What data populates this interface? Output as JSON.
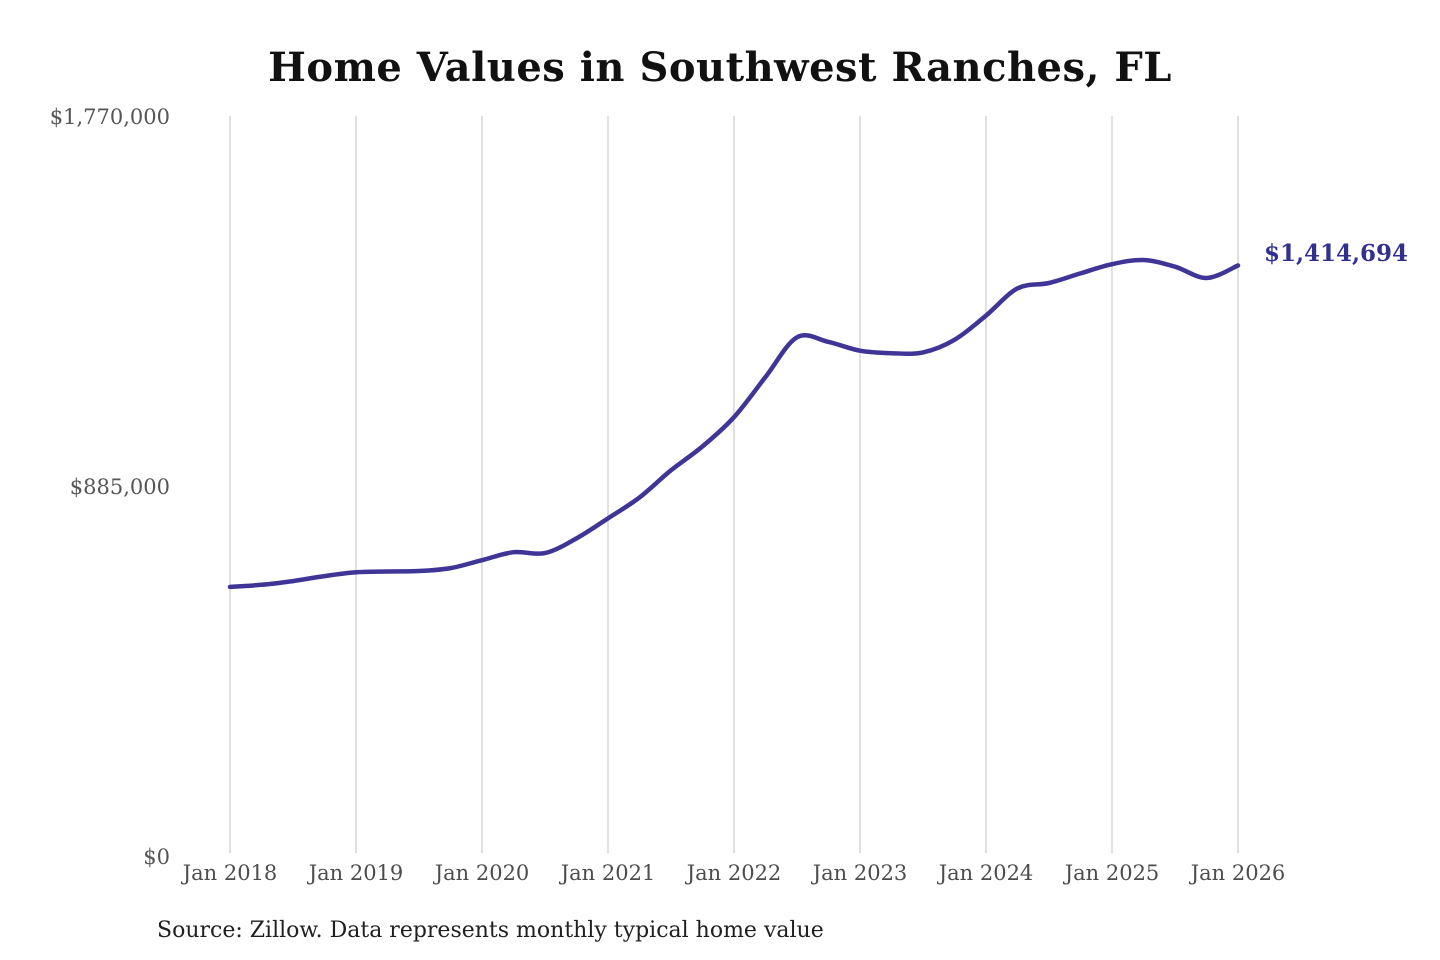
{
  "title": "Home Values in Southwest Ranches, FL",
  "footer": {
    "source_note": "Source: Zillow. Data represents monthly typical home value"
  },
  "colors": {
    "line": "#3e3596",
    "grid": "#cccccc",
    "end_label": "#32308e",
    "y_tick_text": "#555555",
    "x_tick_text": "#4d4d4d",
    "title_text": "#111111",
    "source_text": "#1f1f1f",
    "background": "#ffffff"
  },
  "chart_data": {
    "type": "line",
    "title": "Home Values in Southwest Ranches, FL",
    "xlabel": "",
    "ylabel": "",
    "ylim": [
      0,
      1770000
    ],
    "grid": "vertical-only",
    "legend_position": "none",
    "y_ticks": [
      {
        "value": 0,
        "label": "$0"
      },
      {
        "value": 885000,
        "label": "$885,000"
      },
      {
        "value": 1770000,
        "label": "$1,770,000"
      }
    ],
    "x_tick_labels": [
      "Jan 2018",
      "Jan 2019",
      "Jan 2020",
      "Jan 2021",
      "Jan 2022",
      "Jan 2023",
      "Jan 2024",
      "Jan 2025",
      "Jan 2026"
    ],
    "x_range_months": 96,
    "end_label": "$1,414,694",
    "latest_value": 1414694,
    "series": [
      {
        "name": "Monthly typical home value",
        "color": "#3e3596",
        "x_months": [
          0,
          3,
          6,
          9,
          12,
          15,
          18,
          21,
          24,
          27,
          30,
          33,
          36,
          39,
          42,
          45,
          48,
          51,
          54,
          57,
          60,
          63,
          66,
          69,
          72,
          75,
          78,
          81,
          84,
          87,
          90,
          93,
          96
        ],
        "x_dates": [
          "Jan 2018",
          "Apr 2018",
          "Jul 2018",
          "Oct 2018",
          "Jan 2019",
          "Apr 2019",
          "Jul 2019",
          "Oct 2019",
          "Jan 2020",
          "Apr 2020",
          "Jul 2020",
          "Oct 2020",
          "Jan 2021",
          "Apr 2021",
          "Jul 2021",
          "Oct 2021",
          "Jan 2022",
          "Apr 2022",
          "Jul 2022",
          "Oct 2022",
          "Jan 2023",
          "Apr 2023",
          "Jul 2023",
          "Oct 2023",
          "Jan 2024",
          "Apr 2024",
          "Jul 2024",
          "Oct 2024",
          "Jan 2025",
          "Apr 2025",
          "Jul 2025",
          "Oct 2025",
          "Jan 2026"
        ],
        "values": [
          646000,
          651000,
          660000,
          672000,
          681000,
          683000,
          684000,
          691000,
          710000,
          729000,
          727000,
          762000,
          810000,
          860000,
          925000,
          982000,
          1052000,
          1148000,
          1243000,
          1232000,
          1211000,
          1205000,
          1207000,
          1237000,
          1295000,
          1360000,
          1373000,
          1396000,
          1418000,
          1428000,
          1412000,
          1385000,
          1414694
        ]
      }
    ]
  }
}
